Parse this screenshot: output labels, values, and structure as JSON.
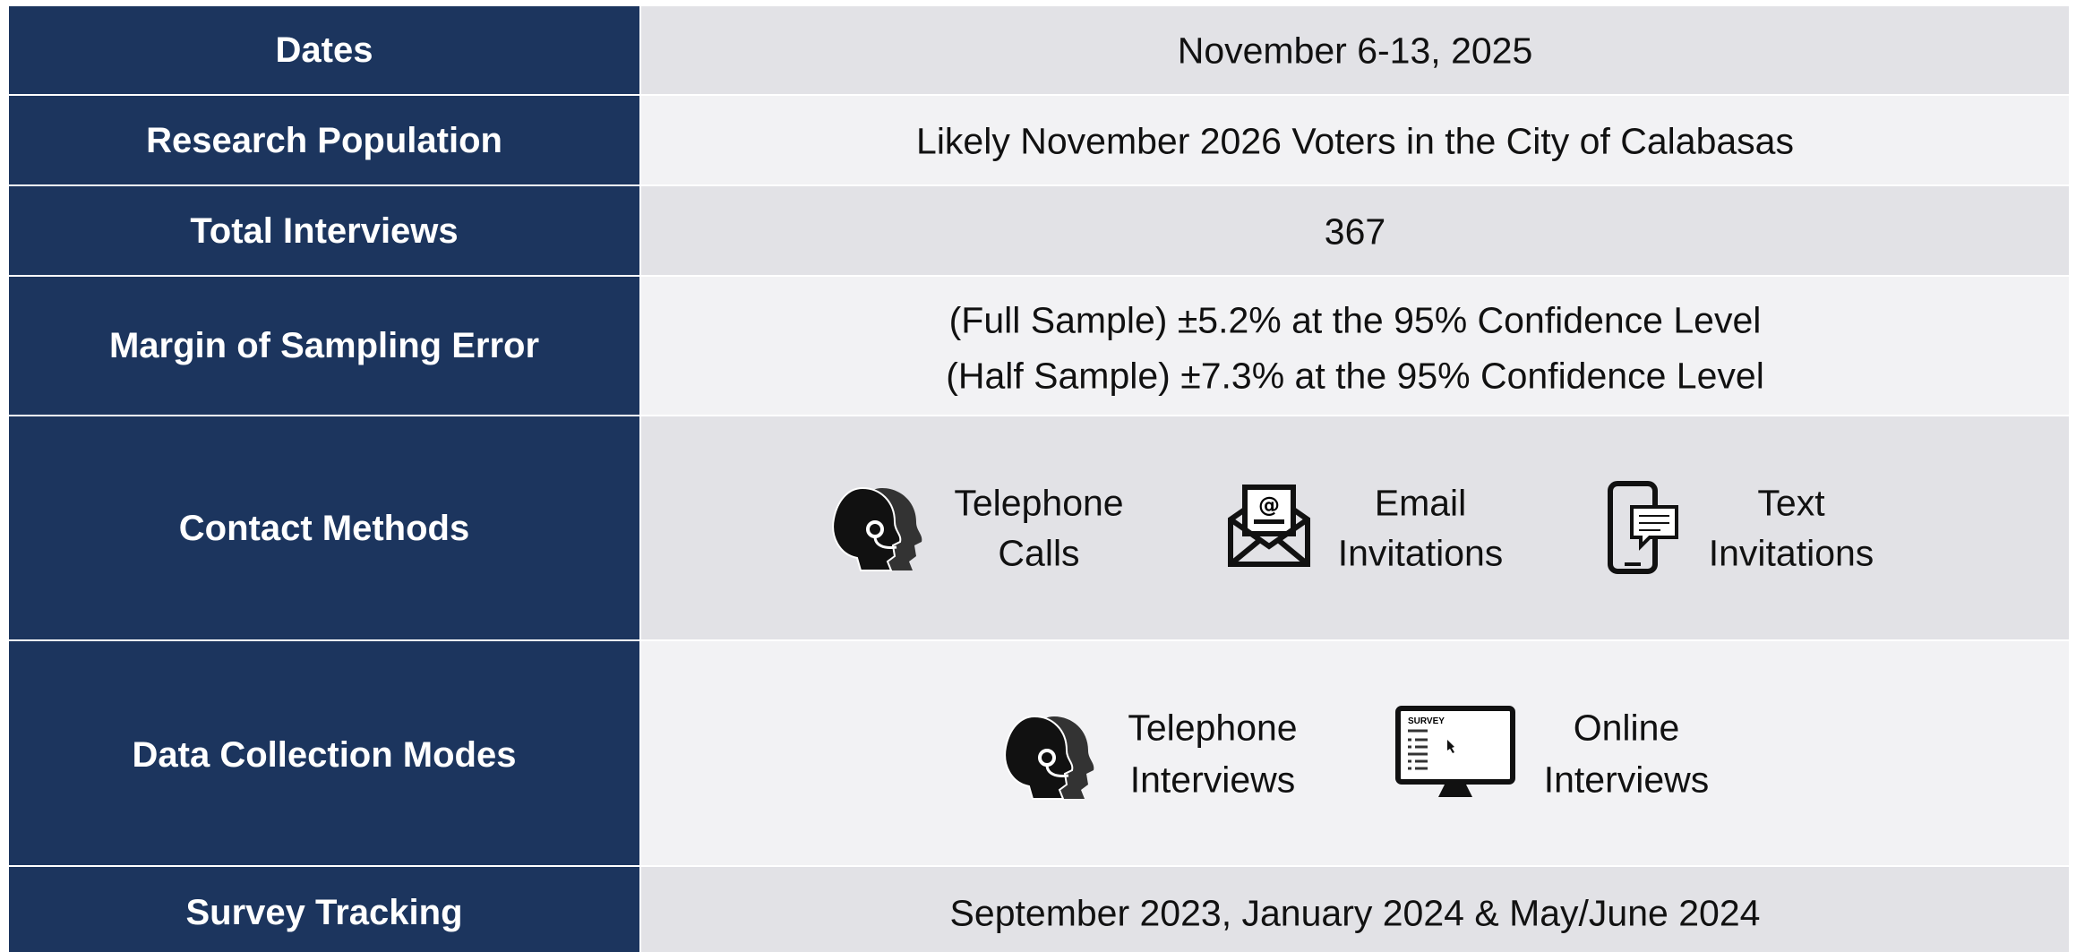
{
  "table": {
    "rows": [
      {
        "label": "Dates",
        "value": "November 6-13, 2025"
      },
      {
        "label": "Research Population",
        "value": "Likely November 2026 Voters in the City of Calabasas"
      },
      {
        "label": "Total Interviews",
        "value": "367"
      },
      {
        "label": "Margin of Sampling Error",
        "lines": [
          "(Full Sample) ±5.2% at the 95% Confidence Level",
          "(Half Sample) ±7.3% at the 95% Confidence Level"
        ]
      },
      {
        "label": "Contact Methods",
        "items": [
          {
            "lines": [
              "Telephone",
              "Calls"
            ]
          },
          {
            "lines": [
              "Email",
              "Invitations"
            ]
          },
          {
            "lines": [
              "Text",
              "Invitations"
            ]
          }
        ]
      },
      {
        "label": "Data Collection Modes",
        "items": [
          {
            "lines": [
              "Telephone",
              "Interviews"
            ]
          },
          {
            "lines": [
              "Online",
              "Interviews"
            ]
          }
        ],
        "icon_text": "SURVEY"
      },
      {
        "label": "Survey Tracking",
        "value": "September 2023, January 2024 & May/June 2024"
      }
    ]
  }
}
